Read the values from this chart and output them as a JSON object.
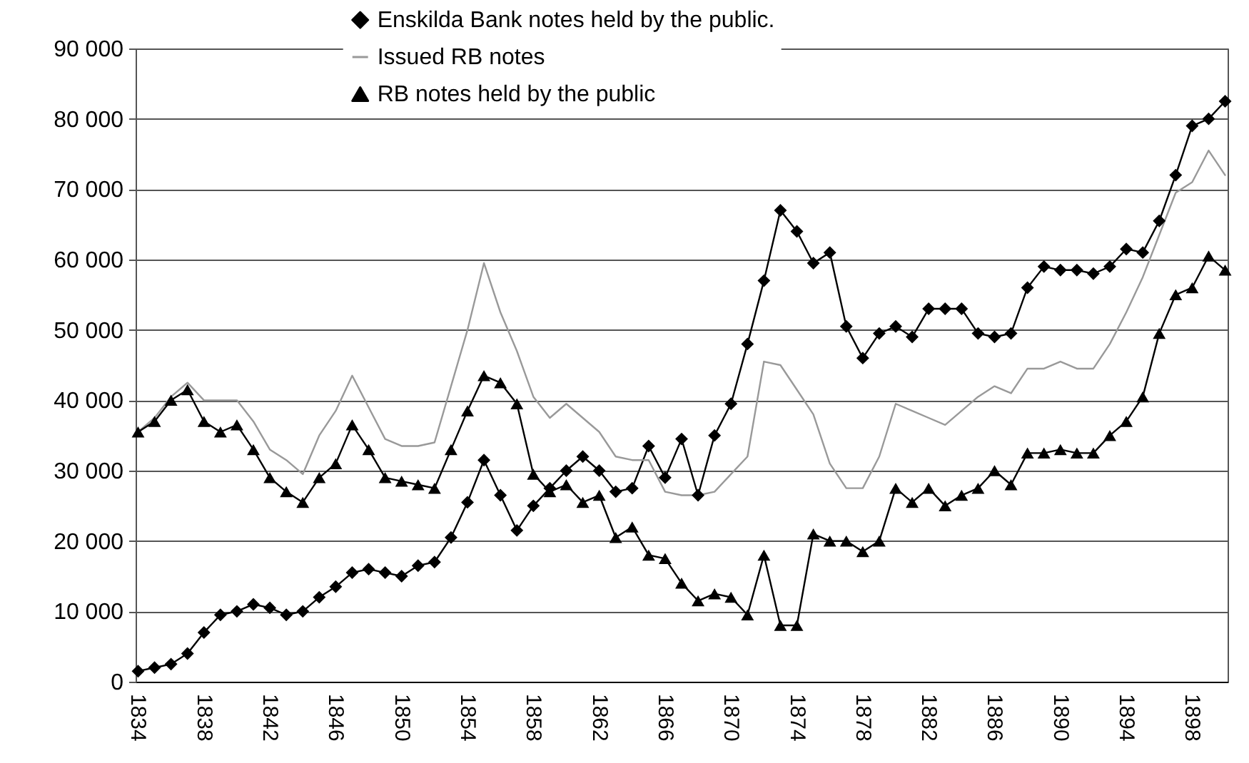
{
  "chart_data": {
    "type": "line",
    "categories": [
      "1834",
      null,
      null,
      null,
      "1838",
      null,
      null,
      null,
      "1842",
      null,
      null,
      null,
      "1846",
      null,
      null,
      null,
      "1850",
      null,
      null,
      null,
      "1854",
      null,
      null,
      null,
      "1858",
      null,
      null,
      null,
      "1862",
      null,
      null,
      null,
      "1866",
      null,
      null,
      null,
      "1870",
      null,
      null,
      null,
      "1874",
      null,
      null,
      null,
      "1878",
      null,
      null,
      null,
      "1882",
      null,
      null,
      null,
      "1886",
      null,
      null,
      null,
      "1890",
      null,
      null,
      null,
      "1894",
      null,
      null,
      null,
      "1898",
      null,
      null
    ],
    "ylim": [
      0,
      90000
    ],
    "yticks": [
      {
        "value": 0,
        "label": "0"
      },
      {
        "value": 10000,
        "label": "10 000"
      },
      {
        "value": 20000,
        "label": "20 000"
      },
      {
        "value": 30000,
        "label": "30 000"
      },
      {
        "value": 40000,
        "label": "40 000"
      },
      {
        "value": 50000,
        "label": "50 000"
      },
      {
        "value": 60000,
        "label": "60 000"
      },
      {
        "value": 70000,
        "label": "70 000"
      },
      {
        "value": 80000,
        "label": "80 000"
      },
      {
        "value": 90000,
        "label": "90 000"
      }
    ],
    "grid": "y",
    "legend": "top",
    "line_style": "solid",
    "series": [
      {
        "name": "Enskilda Bank notes held by the public.",
        "color": "#000000",
        "marker": "diamond",
        "values": [
          1500,
          2000,
          2500,
          4000,
          7000,
          9500,
          10000,
          11000,
          10500,
          9500,
          10000,
          12000,
          13500,
          15500,
          16000,
          15500,
          15000,
          16500,
          17000,
          20500,
          25500,
          31500,
          26500,
          21500,
          25000,
          27500,
          30000,
          32000,
          30000,
          27000,
          27500,
          33500,
          29000,
          34500,
          26500,
          35000,
          39500,
          48000,
          57000,
          67000,
          64000,
          59500,
          61000,
          50500,
          46000,
          49500,
          50500,
          49000,
          53000,
          53000,
          53000,
          49500,
          49000,
          49500,
          56000,
          59000,
          58500,
          58500,
          58000,
          59000,
          61500,
          61000,
          65500,
          72000,
          79000,
          80000,
          82500
        ]
      },
      {
        "name": "Issued RB notes",
        "color": "#999999",
        "marker": "none",
        "values": [
          35500,
          37500,
          40500,
          42500,
          40000,
          40000,
          40000,
          37000,
          33000,
          31500,
          29500,
          35000,
          38500,
          43500,
          39000,
          34500,
          33500,
          33500,
          34000,
          42000,
          50000,
          59500,
          52500,
          47000,
          40500,
          37500,
          39500,
          37500,
          35500,
          32000,
          31500,
          31500,
          27000,
          26500,
          26500,
          27000,
          29500,
          32000,
          45500,
          45000,
          41500,
          38000,
          31000,
          27500,
          27500,
          32000,
          39500,
          38500,
          37500,
          36500,
          38500,
          40500,
          42000,
          41000,
          44500,
          44500,
          45500,
          44500,
          44500,
          48000,
          52500,
          57500,
          63500,
          69500,
          71000,
          75500,
          72000
        ]
      },
      {
        "name": "RB notes held by the public",
        "color": "#000000",
        "marker": "triangle",
        "values": [
          35500,
          37000,
          40000,
          41500,
          37000,
          35500,
          36500,
          33000,
          29000,
          27000,
          25500,
          29000,
          31000,
          36500,
          33000,
          29000,
          28500,
          28000,
          27500,
          33000,
          38500,
          43500,
          42500,
          39500,
          29500,
          27000,
          28000,
          25500,
          26500,
          20500,
          22000,
          18000,
          17500,
          14000,
          11500,
          12500,
          12000,
          9500,
          18000,
          8000,
          8000,
          21000,
          20000,
          20000,
          18500,
          20000,
          27500,
          25500,
          27500,
          25000,
          26500,
          27500,
          30000,
          28000,
          32500,
          32500,
          33000,
          32500,
          32500,
          35000,
          37000,
          40500,
          49500,
          55000,
          56000,
          60500,
          58500
        ]
      }
    ]
  }
}
